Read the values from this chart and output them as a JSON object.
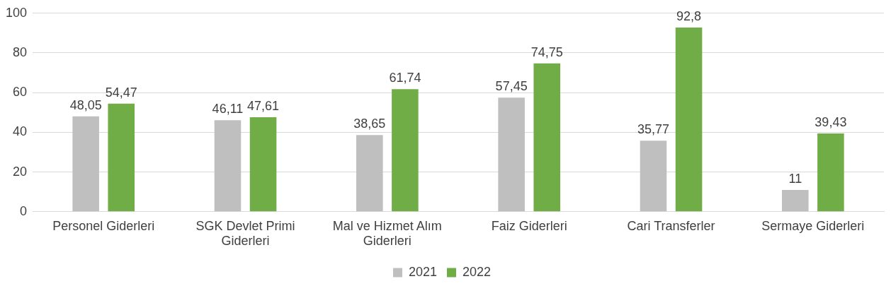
{
  "chart_data": {
    "type": "bar",
    "categories": [
      "Personel Giderleri",
      "SGK Devlet Primi Giderleri",
      "Mal ve Hizmet Alım Giderleri",
      "Faiz Giderleri",
      "Cari Transferler",
      "Sermaye Giderleri"
    ],
    "series": [
      {
        "name": "2021",
        "color": "#bfbfbf",
        "values": [
          48.05,
          46.11,
          38.65,
          57.45,
          35.77,
          11
        ],
        "value_labels": [
          "48,05",
          "46,11",
          "38,65",
          "57,45",
          "35,77",
          "11"
        ]
      },
      {
        "name": "2022",
        "color": "#70ad47",
        "values": [
          54.47,
          47.61,
          61.74,
          74.75,
          92.8,
          39.43
        ],
        "value_labels": [
          "54,47",
          "47,61",
          "61,74",
          "74,75",
          "92,8",
          "39,43"
        ]
      }
    ],
    "ylim": [
      0,
      100
    ],
    "yticks": [
      0,
      20,
      40,
      60,
      80,
      100
    ],
    "grid": "y",
    "legend": "bottom"
  }
}
